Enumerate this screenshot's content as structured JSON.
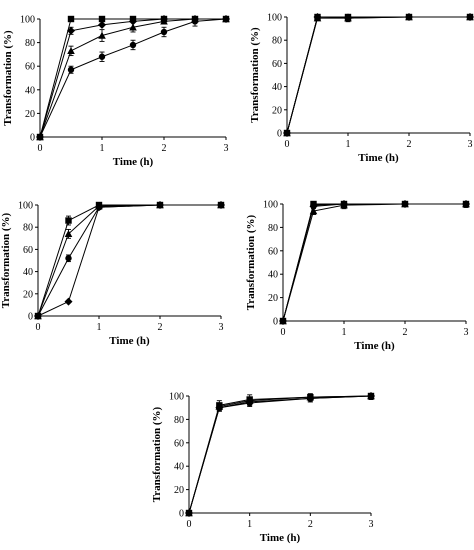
{
  "chart_data": [
    {
      "type": "line",
      "panel": "top-left",
      "xlabel": "Time (h)",
      "ylabel": "Transformation (%)",
      "xlim": [
        0,
        3
      ],
      "ylim": [
        0,
        100
      ],
      "xticks": [
        0,
        1,
        2,
        3
      ],
      "yticks": [
        0,
        20,
        40,
        60,
        80,
        100
      ],
      "series": [
        {
          "marker": "square",
          "points": [
            [
              0,
              0
            ],
            [
              0.5,
              100
            ],
            [
              1,
              100
            ],
            [
              1.5,
              100
            ],
            [
              2,
              100
            ],
            [
              2.5,
              100
            ],
            [
              3,
              100
            ]
          ],
          "errors": [
            0,
            0,
            0,
            0,
            0,
            0,
            0
          ]
        },
        {
          "marker": "diamond",
          "points": [
            [
              0,
              0
            ],
            [
              0.5,
              90
            ],
            [
              1,
              95
            ],
            [
              1.5,
              98
            ],
            [
              2,
              100
            ],
            [
              2.5,
              100
            ],
            [
              3,
              100
            ]
          ],
          "errors": [
            0,
            3,
            0,
            0,
            0,
            0,
            0
          ]
        },
        {
          "marker": "triangle",
          "points": [
            [
              0,
              0
            ],
            [
              0.5,
              73
            ],
            [
              1,
              86
            ],
            [
              1.5,
              93
            ],
            [
              2,
              98
            ],
            [
              2.5,
              100
            ],
            [
              3,
              100
            ]
          ],
          "errors": [
            0,
            4,
            5,
            4,
            0,
            0,
            0
          ]
        },
        {
          "marker": "circle",
          "points": [
            [
              0,
              0
            ],
            [
              0.5,
              57
            ],
            [
              1,
              68
            ],
            [
              1.5,
              78
            ],
            [
              2,
              89
            ],
            [
              2.5,
              98
            ],
            [
              3,
              100
            ]
          ],
          "errors": [
            0,
            3,
            4,
            4,
            4,
            4,
            0
          ]
        }
      ]
    },
    {
      "type": "line",
      "panel": "top-right",
      "xlabel": "Time (h)",
      "ylabel": "Transformation (%)",
      "xlim": [
        0,
        3
      ],
      "ylim": [
        0,
        100
      ],
      "xticks": [
        0,
        1,
        2,
        3
      ],
      "yticks": [
        0,
        20,
        40,
        60,
        80,
        100
      ],
      "series": [
        {
          "marker": "square",
          "points": [
            [
              0,
              0
            ],
            [
              0.5,
              100
            ],
            [
              1,
              100
            ],
            [
              2,
              100
            ],
            [
              3,
              100
            ]
          ],
          "errors": [
            0,
            0,
            0,
            0,
            0
          ]
        },
        {
          "marker": "diamond",
          "points": [
            [
              0,
              0
            ],
            [
              0.5,
              100
            ],
            [
              1,
              99
            ],
            [
              2,
              100
            ],
            [
              3,
              100
            ]
          ],
          "errors": [
            0,
            2,
            3,
            2,
            2
          ]
        },
        {
          "marker": "triangle",
          "points": [
            [
              0,
              0
            ],
            [
              0.5,
              99
            ],
            [
              1,
              99
            ],
            [
              2,
              100
            ],
            [
              3,
              100
            ]
          ],
          "errors": [
            0,
            2,
            3,
            2,
            2
          ]
        },
        {
          "marker": "circle",
          "points": [
            [
              0,
              0
            ],
            [
              0.5,
              100
            ],
            [
              1,
              100
            ],
            [
              2,
              100
            ],
            [
              3,
              100
            ]
          ],
          "errors": [
            0,
            0,
            0,
            0,
            0
          ]
        }
      ]
    },
    {
      "type": "line",
      "panel": "middle-left",
      "xlabel": "Time (h)",
      "ylabel": "Transformation (%)",
      "xlim": [
        0,
        3
      ],
      "ylim": [
        0,
        100
      ],
      "xticks": [
        0,
        1,
        2,
        3
      ],
      "yticks": [
        0,
        20,
        40,
        60,
        80,
        100
      ],
      "series": [
        {
          "marker": "square",
          "points": [
            [
              0,
              0
            ],
            [
              0.5,
              86
            ],
            [
              1,
              100
            ],
            [
              2,
              100
            ],
            [
              3,
              100
            ]
          ],
          "errors": [
            0,
            4,
            0,
            2,
            2
          ]
        },
        {
          "marker": "triangle",
          "points": [
            [
              0,
              0
            ],
            [
              0.5,
              74
            ],
            [
              1,
              99
            ],
            [
              2,
              100
            ],
            [
              3,
              100
            ]
          ],
          "errors": [
            0,
            4,
            2,
            2,
            2
          ]
        },
        {
          "marker": "circle",
          "points": [
            [
              0,
              0
            ],
            [
              0.5,
              52
            ],
            [
              1,
              98
            ],
            [
              2,
              100
            ],
            [
              3,
              100
            ]
          ],
          "errors": [
            0,
            3,
            2,
            2,
            2
          ]
        },
        {
          "marker": "diamond",
          "points": [
            [
              0,
              0
            ],
            [
              0.5,
              13
            ],
            [
              1,
              98
            ],
            [
              2,
              100
            ],
            [
              3,
              100
            ]
          ],
          "errors": [
            0,
            0,
            2,
            2,
            2
          ]
        }
      ]
    },
    {
      "type": "line",
      "panel": "middle-right",
      "xlabel": "Time (h)",
      "ylabel": "Transformation (%)",
      "xlim": [
        0,
        3
      ],
      "ylim": [
        0,
        100
      ],
      "xticks": [
        0,
        1,
        2,
        3
      ],
      "yticks": [
        0,
        20,
        40,
        60,
        80,
        100
      ],
      "series": [
        {
          "marker": "square",
          "points": [
            [
              0,
              0
            ],
            [
              0.5,
              100
            ],
            [
              1,
              100
            ],
            [
              2,
              100
            ],
            [
              3,
              100
            ]
          ],
          "errors": [
            0,
            0,
            0,
            0,
            0
          ]
        },
        {
          "marker": "diamond",
          "points": [
            [
              0,
              0
            ],
            [
              0.5,
              98
            ],
            [
              1,
              100
            ],
            [
              2,
              100
            ],
            [
              3,
              100
            ]
          ],
          "errors": [
            0,
            2,
            2,
            2,
            2
          ]
        },
        {
          "marker": "triangle",
          "points": [
            [
              0,
              0
            ],
            [
              0.5,
              94
            ],
            [
              1,
              99
            ],
            [
              2,
              100
            ],
            [
              3,
              100
            ]
          ],
          "errors": [
            0,
            3,
            3,
            2,
            3
          ]
        },
        {
          "marker": "circle",
          "points": [
            [
              0,
              0
            ],
            [
              0.5,
              99
            ],
            [
              1,
              100
            ],
            [
              2,
              100
            ],
            [
              3,
              100
            ]
          ],
          "errors": [
            0,
            0,
            0,
            0,
            0
          ]
        }
      ]
    },
    {
      "type": "line",
      "panel": "bottom-center",
      "xlabel": "Time (h)",
      "ylabel": "Transformation (%)",
      "xlim": [
        0,
        3
      ],
      "ylim": [
        0,
        100
      ],
      "xticks": [
        0,
        1,
        2,
        3
      ],
      "yticks": [
        0,
        20,
        40,
        60,
        80,
        100
      ],
      "series": [
        {
          "marker": "square",
          "points": [
            [
              0,
              0
            ],
            [
              0.5,
              92
            ],
            [
              1,
              97
            ],
            [
              2,
              99
            ],
            [
              3,
              100
            ]
          ],
          "errors": [
            0,
            4,
            4,
            3,
            3
          ]
        },
        {
          "marker": "diamond",
          "points": [
            [
              0,
              0
            ],
            [
              0.5,
              90
            ],
            [
              1,
              95
            ],
            [
              2,
              98
            ],
            [
              3,
              100
            ]
          ],
          "errors": [
            0,
            3,
            3,
            3,
            3
          ]
        },
        {
          "marker": "triangle",
          "points": [
            [
              0,
              0
            ],
            [
              0.5,
              91
            ],
            [
              1,
              96
            ],
            [
              2,
              99
            ],
            [
              3,
              100
            ]
          ],
          "errors": [
            0,
            3,
            3,
            2,
            3
          ]
        },
        {
          "marker": "circle",
          "points": [
            [
              0,
              0
            ],
            [
              0.5,
              90
            ],
            [
              1,
              94
            ],
            [
              2,
              98
            ],
            [
              3,
              100
            ]
          ],
          "errors": [
            0,
            3,
            3,
            3,
            3
          ]
        }
      ]
    }
  ]
}
